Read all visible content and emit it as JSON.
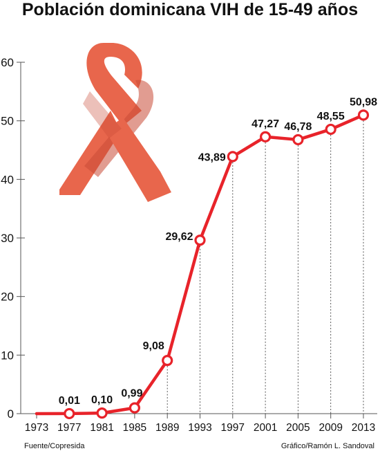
{
  "chart_data": {
    "type": "line",
    "title": "Población dominicana VIH de 15-49 años",
    "xlabel": "",
    "ylabel": "",
    "x": [
      "1973",
      "1977",
      "1981",
      "1985",
      "1989",
      "1993",
      "1997",
      "2001",
      "2005",
      "2009",
      "2013"
    ],
    "series": [
      {
        "values": [
          0,
          0.01,
          0.1,
          0.99,
          9.08,
          29.62,
          43.89,
          47.27,
          46.78,
          48.55,
          50.98
        ],
        "labels": [
          null,
          "0,01",
          "0,10",
          "0,99",
          "9,08",
          "29,62",
          "43,89",
          "47,27",
          "46,78",
          "48,55",
          "50,98"
        ]
      }
    ],
    "yticks": [
      "0",
      "10",
      "20",
      "30",
      "40",
      "50",
      "60"
    ],
    "ylim": [
      0,
      60
    ],
    "grid": false,
    "source": "Fuente/Copresida",
    "credit": "Gráfico/Ramón L. Sandoval"
  },
  "colors": {
    "line": "#e8232a",
    "ribbon": "#e8664c",
    "ribbon_dark": "#c94a36",
    "axis": "#555555"
  },
  "icons": [
    "aids-ribbon-icon"
  ]
}
